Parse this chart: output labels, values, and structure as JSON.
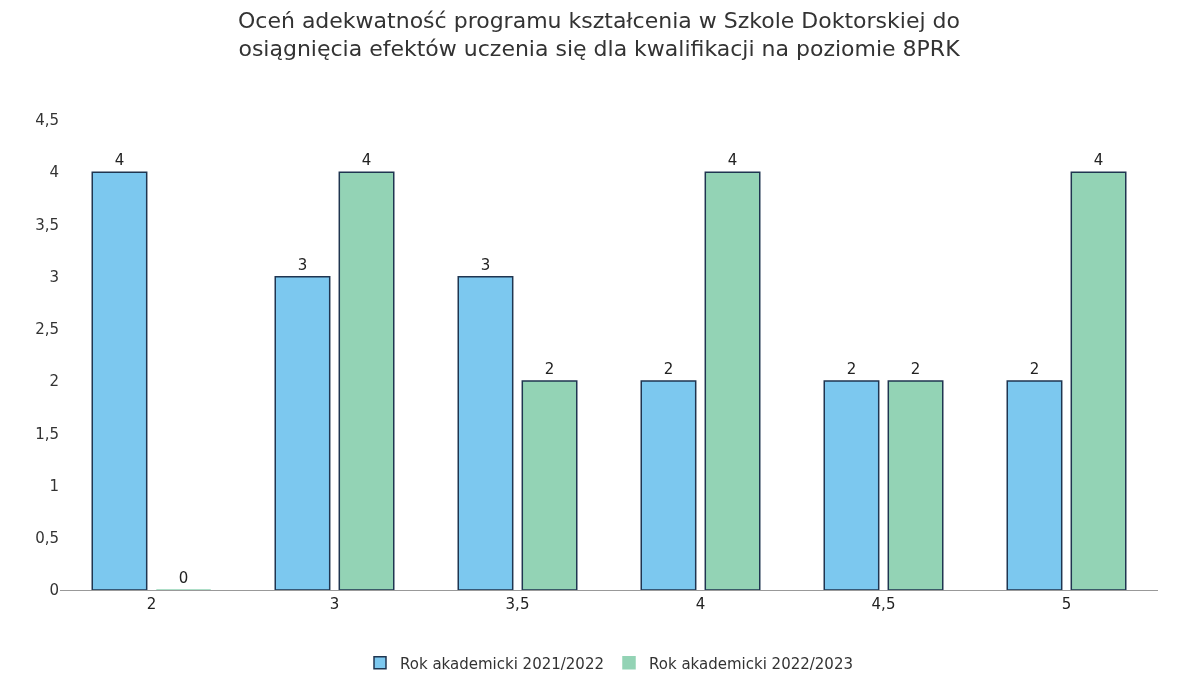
{
  "chart_data": {
    "type": "bar",
    "title": "Oceń adekwatność programu kształcenia w Szkole Doktorskiej do osiągnięcia efektów uczenia się dla kwalifikacji na poziomie 8PRK",
    "categories": [
      "2",
      "3",
      "3,5",
      "4",
      "4,5",
      "5"
    ],
    "series": [
      {
        "name": "Rok akademicki 2021/2022",
        "color": "#7cc8ef",
        "values": [
          4,
          3,
          3,
          2,
          2,
          2
        ]
      },
      {
        "name": "Rok akademicki 2022/2023",
        "color": "#93d3b5",
        "values": [
          0,
          4,
          2,
          4,
          2,
          4
        ]
      }
    ],
    "ylim": [
      0,
      4.5
    ],
    "yticks": [
      0,
      {
        "value": 0.5,
        "label": "0,5"
      },
      1,
      {
        "value": 1.5,
        "label": "1,5"
      },
      2,
      {
        "value": 2.5,
        "label": "2,5"
      },
      3,
      {
        "value": 3.5,
        "label": "3,5"
      },
      4,
      {
        "value": 4.5,
        "label": "4,5"
      }
    ],
    "data_labels": true,
    "grid": false,
    "legend": "bottom"
  }
}
